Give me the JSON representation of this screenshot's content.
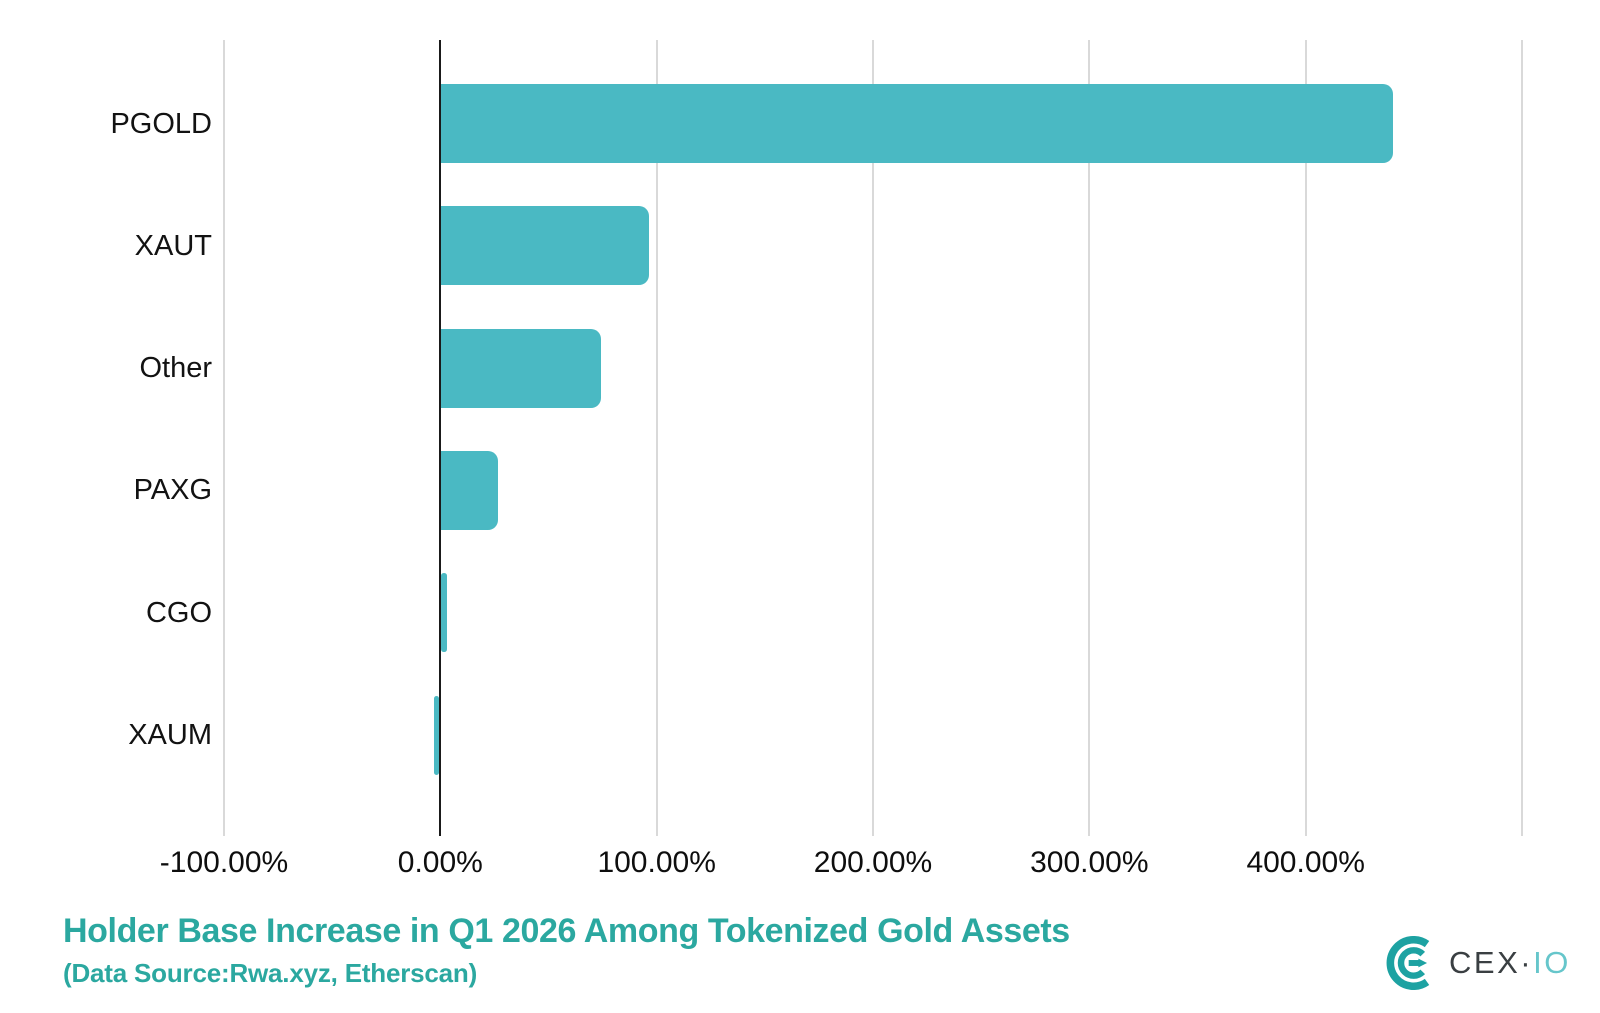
{
  "chart_data": {
    "type": "bar",
    "orientation": "horizontal",
    "title": "Holder Base Increase in Q1 2026 Among Tokenized Gold Assets",
    "subtitle": "(Data Source:Rwa.xyz, Etherscan)",
    "categories": [
      "PGOLD",
      "XAUT",
      "Other",
      "PAXG",
      "CGO",
      "XAUM"
    ],
    "values_pct": [
      440,
      96,
      74,
      26,
      2.5,
      -2.5
    ],
    "xlabel": "",
    "ylabel": "",
    "xlim": [
      -100,
      500
    ],
    "grid_values": [
      -100,
      0,
      100,
      200,
      300,
      400,
      500
    ],
    "x_ticks": [
      {
        "value": -100,
        "label": "-100.00%"
      },
      {
        "value": 0,
        "label": "0.00%"
      },
      {
        "value": 100,
        "label": "100.00%"
      },
      {
        "value": 200,
        "label": "200.00%"
      },
      {
        "value": 300,
        "label": "300.00%"
      },
      {
        "value": 400,
        "label": "400.00%"
      }
    ],
    "grid": true,
    "legend_position": "none",
    "bar_color": "#4ab9c3",
    "grid_color": "#d9d9d9",
    "zero_line_color": "#1a1a1a",
    "title_color": "#2ba8a0"
  },
  "branding": {
    "logo_name": "CEX.IO",
    "logo_prefix": "CEX",
    "logo_separator": "·",
    "logo_suffix": "IO",
    "logo_teal": "#1da2a2",
    "logo_text_dark": "#3a3f42",
    "logo_text_teal": "#66c6cb"
  }
}
